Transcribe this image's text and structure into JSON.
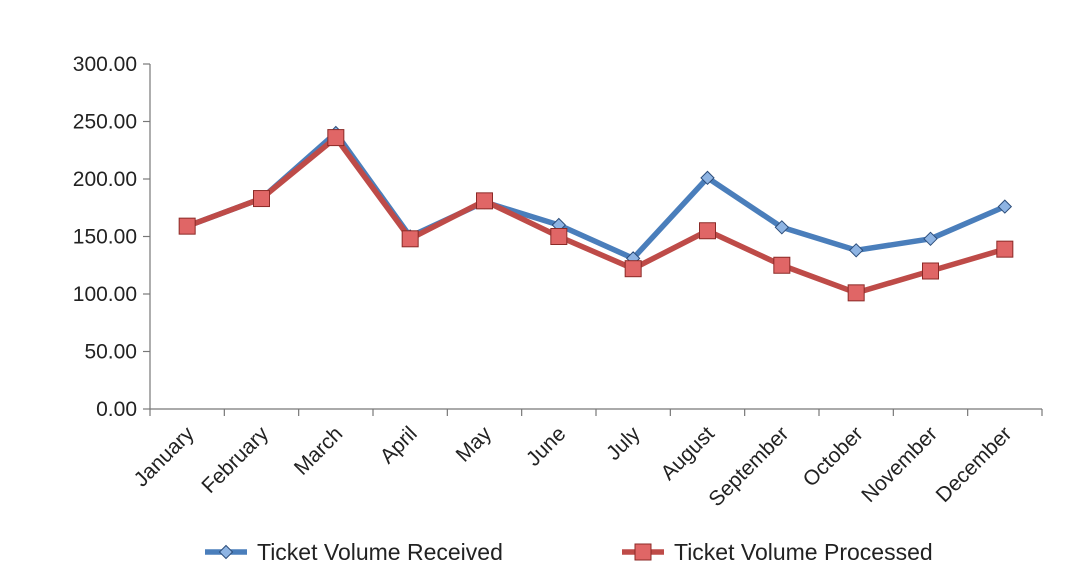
{
  "chart_data": {
    "type": "line",
    "title": "",
    "xlabel": "",
    "ylabel": "",
    "categories": [
      "January",
      "February",
      "March",
      "April",
      "May",
      "June",
      "July",
      "August",
      "September",
      "October",
      "November",
      "December"
    ],
    "ylim": [
      0,
      300
    ],
    "yticks": [
      "0.00",
      "50.00",
      "100.00",
      "150.00",
      "200.00",
      "250.00",
      "300.00"
    ],
    "grid": false,
    "legend_position": "bottom",
    "series": [
      {
        "name": "Ticket Volume Received",
        "marker": "diamond",
        "color": "#4a7ebb",
        "marker_fill": "#8eb4e3",
        "marker_stroke": "#2c4d7a",
        "values": [
          159,
          183,
          240,
          150,
          180,
          160,
          131,
          201,
          158,
          138,
          148,
          176
        ]
      },
      {
        "name": "Ticket Volume Processed",
        "marker": "square",
        "color": "#be4b48",
        "marker_fill": "#e06666",
        "marker_stroke": "#8b2a27",
        "values": [
          159,
          183,
          236,
          148,
          181,
          150,
          122,
          155,
          125,
          101,
          120,
          139
        ]
      }
    ]
  }
}
